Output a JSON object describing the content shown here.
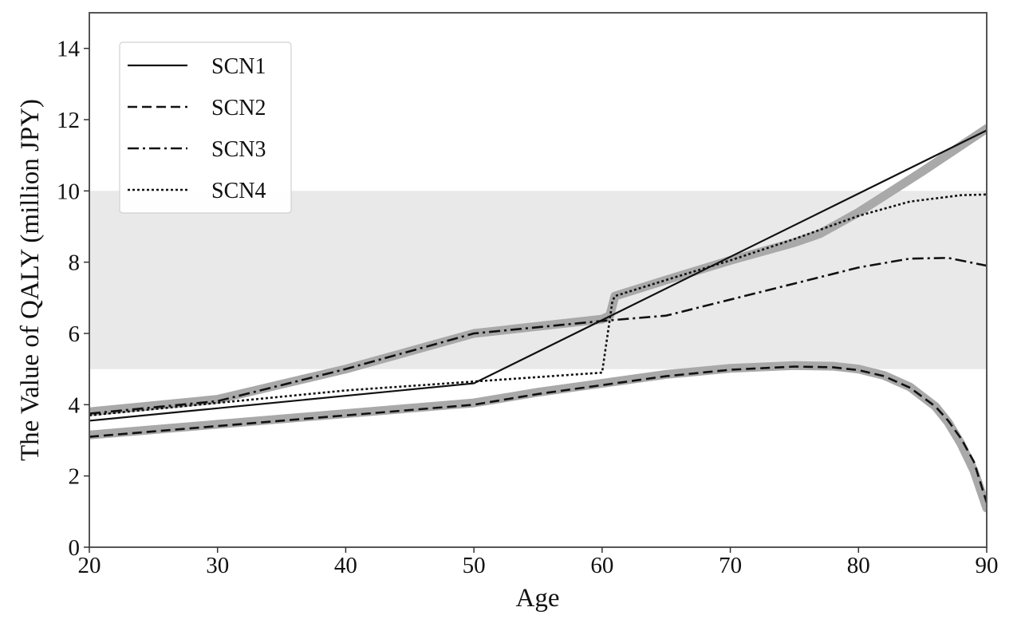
{
  "chart_data": {
    "type": "line",
    "title": "",
    "xlabel": "Age",
    "ylabel": "The Value of QALY (million JPY)",
    "xlim": [
      20,
      90
    ],
    "ylim": [
      0,
      15
    ],
    "xticks": [
      20,
      30,
      40,
      50,
      60,
      70,
      80,
      90
    ],
    "yticks": [
      0,
      2,
      4,
      6,
      8,
      10,
      12,
      14
    ],
    "grid": false,
    "legend_position": "top-left",
    "shaded_band": {
      "y_from": 5,
      "y_to": 10,
      "color": "#e9e9e9"
    },
    "highlight_color": "#a9a9a9",
    "series": [
      {
        "name": "SCN1",
        "style": "solid",
        "x": [
          20,
          30,
          50,
          90
        ],
        "y": [
          3.55,
          3.9,
          4.6,
          11.7
        ]
      },
      {
        "name": "SCN2",
        "style": "dashed",
        "x": [
          20,
          30,
          40,
          50,
          55,
          60,
          65,
          70,
          75,
          78,
          80,
          82,
          84,
          86,
          87,
          88,
          89,
          90
        ],
        "y": [
          3.1,
          3.4,
          3.7,
          4.0,
          4.3,
          4.55,
          4.8,
          4.98,
          5.07,
          5.05,
          4.97,
          4.8,
          4.48,
          3.95,
          3.55,
          3.05,
          2.4,
          1.25
        ]
      },
      {
        "name": "SCN3",
        "style": "dashdot",
        "x": [
          20,
          30,
          40,
          50,
          60,
          65,
          70,
          75,
          80,
          84,
          87,
          90
        ],
        "y": [
          3.75,
          4.1,
          5.0,
          6.0,
          6.35,
          6.5,
          6.95,
          7.4,
          7.85,
          8.1,
          8.12,
          7.9
        ]
      },
      {
        "name": "SCN4",
        "style": "dotted",
        "x": [
          20,
          30,
          40,
          50,
          60,
          60.8,
          61,
          65,
          70,
          75,
          80,
          84,
          88,
          90
        ],
        "y": [
          3.7,
          4.05,
          4.4,
          4.65,
          4.9,
          6.9,
          7.05,
          7.5,
          8.05,
          8.65,
          9.3,
          9.7,
          9.88,
          9.9
        ]
      }
    ],
    "highlight_segments": [
      {
        "x": [
          20,
          30,
          40,
          50,
          60,
          60.6,
          61,
          65,
          70,
          75,
          77,
          80,
          85,
          90
        ],
        "y": [
          3.8,
          4.15,
          5.0,
          6.0,
          6.4,
          6.5,
          7.05,
          7.5,
          8.05,
          8.55,
          8.8,
          9.4,
          10.55,
          11.75
        ]
      },
      {
        "x": [
          20,
          30,
          40,
          50,
          55,
          60,
          65,
          70,
          75,
          78,
          80,
          82,
          84,
          86,
          87,
          88,
          89,
          90
        ],
        "y": [
          3.15,
          3.45,
          3.75,
          4.05,
          4.35,
          4.6,
          4.85,
          5.02,
          5.1,
          5.08,
          5.0,
          4.82,
          4.5,
          3.95,
          3.5,
          2.9,
          2.15,
          1.1
        ]
      }
    ]
  }
}
